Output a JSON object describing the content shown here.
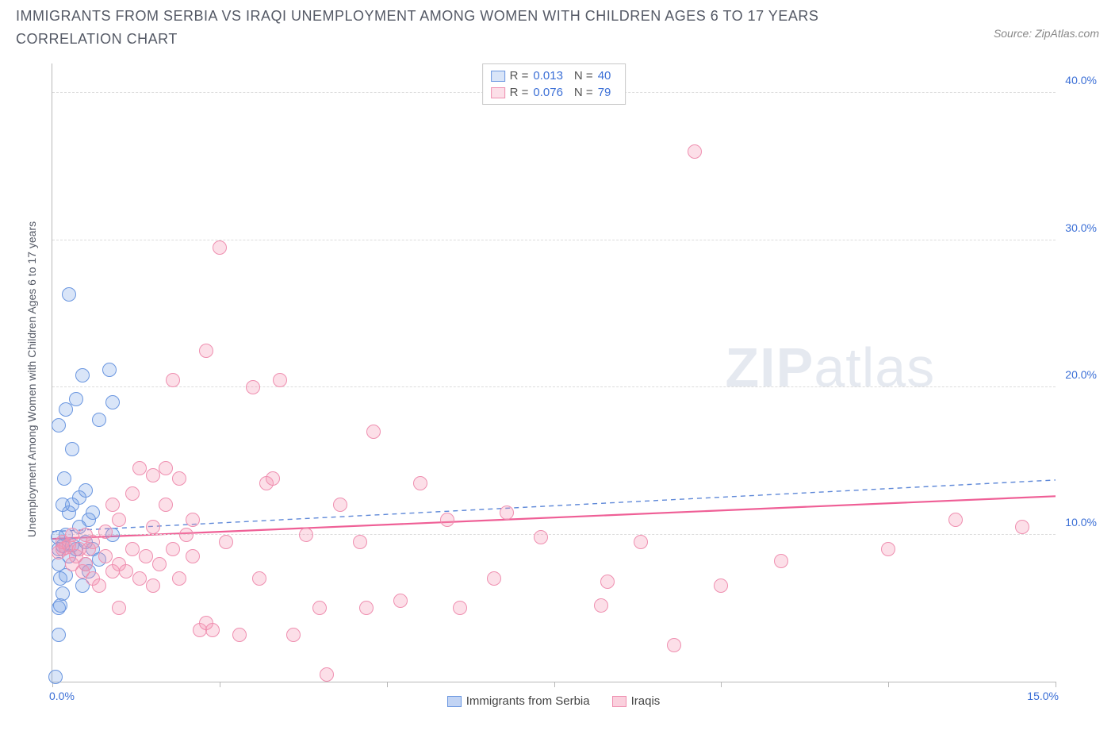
{
  "header": {
    "title": "IMMIGRANTS FROM SERBIA VS IRAQI UNEMPLOYMENT AMONG WOMEN WITH CHILDREN AGES 6 TO 17 YEARS CORRELATION CHART",
    "source": "Source: ZipAtlas.com"
  },
  "watermark": {
    "left": "ZIP",
    "right": "atlas"
  },
  "chart": {
    "type": "scatter",
    "y_label": "Unemployment Among Women with Children Ages 6 to 17 years",
    "xlim": [
      0,
      15
    ],
    "ylim": [
      0,
      42
    ],
    "background_color": "#ffffff",
    "grid_color": "#dcdcdc",
    "axis_color": "#b8b8b8",
    "tick_label_color": "#3b6fd6",
    "y_gridlines": [
      10,
      20,
      30,
      40
    ],
    "y_tick_labels": [
      "10.0%",
      "20.0%",
      "30.0%",
      "40.0%"
    ],
    "x_ticks": [
      0,
      2.5,
      5,
      7.5,
      10,
      12.5,
      15
    ],
    "x_origin_label": "0.0%",
    "x_max_label": "15.0%",
    "marker_radius": 9,
    "series": [
      {
        "name": "Immigrants from Serbia",
        "fill": "rgba(120,160,230,0.28)",
        "stroke": "#6a96e0",
        "trend": {
          "y1": 10.2,
          "y2": 13.7,
          "dash": "6 5",
          "width": 1.4,
          "color": "#5e88d8"
        },
        "R": "0.013",
        "N": "40",
        "points": [
          [
            0.05,
            0.3
          ],
          [
            0.1,
            3.2
          ],
          [
            0.1,
            5.0
          ],
          [
            0.12,
            5.2
          ],
          [
            0.15,
            6.0
          ],
          [
            0.12,
            7.0
          ],
          [
            0.2,
            7.2
          ],
          [
            0.1,
            8.0
          ],
          [
            0.25,
            8.5
          ],
          [
            0.1,
            9.0
          ],
          [
            0.15,
            9.2
          ],
          [
            0.3,
            9.3
          ],
          [
            0.08,
            9.8
          ],
          [
            0.2,
            10.0
          ],
          [
            0.35,
            9.0
          ],
          [
            0.5,
            8.0
          ],
          [
            0.5,
            9.5
          ],
          [
            0.55,
            11.0
          ],
          [
            0.6,
            9.0
          ],
          [
            0.4,
            10.5
          ],
          [
            0.45,
            6.5
          ],
          [
            0.25,
            11.5
          ],
          [
            0.3,
            12.0
          ],
          [
            0.15,
            12.0
          ],
          [
            0.4,
            12.5
          ],
          [
            0.5,
            13.0
          ],
          [
            0.18,
            13.8
          ],
          [
            0.6,
            11.5
          ],
          [
            0.3,
            15.8
          ],
          [
            0.1,
            17.4
          ],
          [
            0.7,
            17.8
          ],
          [
            0.2,
            18.5
          ],
          [
            0.9,
            19.0
          ],
          [
            0.35,
            19.2
          ],
          [
            0.45,
            20.8
          ],
          [
            0.85,
            21.2
          ],
          [
            0.25,
            26.3
          ],
          [
            0.7,
            8.3
          ],
          [
            0.9,
            10.0
          ],
          [
            0.55,
            7.5
          ]
        ]
      },
      {
        "name": "Iraqis",
        "fill": "rgba(245,150,180,0.30)",
        "stroke": "#ef8fb0",
        "trend": {
          "y1": 9.7,
          "y2": 12.6,
          "dash": "none",
          "width": 2.2,
          "color": "#ef5f96"
        },
        "R": "0.076",
        "N": "79",
        "points": [
          [
            0.1,
            8.8
          ],
          [
            0.15,
            9.0
          ],
          [
            0.2,
            9.1
          ],
          [
            0.15,
            9.5
          ],
          [
            0.25,
            9.3
          ],
          [
            0.3,
            8.0
          ],
          [
            0.35,
            8.5
          ],
          [
            0.3,
            10.0
          ],
          [
            0.4,
            9.0
          ],
          [
            0.45,
            7.5
          ],
          [
            0.5,
            8.0
          ],
          [
            0.55,
            9.0
          ],
          [
            0.5,
            10.0
          ],
          [
            0.6,
            9.5
          ],
          [
            0.6,
            7.0
          ],
          [
            0.7,
            6.5
          ],
          [
            0.8,
            8.5
          ],
          [
            0.8,
            10.2
          ],
          [
            0.9,
            7.5
          ],
          [
            0.9,
            12.0
          ],
          [
            1.0,
            5.0
          ],
          [
            1.0,
            8.0
          ],
          [
            1.0,
            11.0
          ],
          [
            1.1,
            7.5
          ],
          [
            1.2,
            9.0
          ],
          [
            1.2,
            12.8
          ],
          [
            1.3,
            7.0
          ],
          [
            1.3,
            14.5
          ],
          [
            1.4,
            8.5
          ],
          [
            1.5,
            6.5
          ],
          [
            1.5,
            10.5
          ],
          [
            1.5,
            14.0
          ],
          [
            1.6,
            8.0
          ],
          [
            1.7,
            12.0
          ],
          [
            1.7,
            14.5
          ],
          [
            1.8,
            9.0
          ],
          [
            1.8,
            20.5
          ],
          [
            1.9,
            7.0
          ],
          [
            1.9,
            13.8
          ],
          [
            2.0,
            10.0
          ],
          [
            2.1,
            8.5
          ],
          [
            2.1,
            11.0
          ],
          [
            2.2,
            3.5
          ],
          [
            2.3,
            4.0
          ],
          [
            2.3,
            22.5
          ],
          [
            2.4,
            3.5
          ],
          [
            2.5,
            29.5
          ],
          [
            2.6,
            9.5
          ],
          [
            2.8,
            3.2
          ],
          [
            3.0,
            20.0
          ],
          [
            3.1,
            7.0
          ],
          [
            3.2,
            13.5
          ],
          [
            3.3,
            13.8
          ],
          [
            3.4,
            20.5
          ],
          [
            3.6,
            3.2
          ],
          [
            3.8,
            10.0
          ],
          [
            4.0,
            5.0
          ],
          [
            4.1,
            0.5
          ],
          [
            4.3,
            12.0
          ],
          [
            4.6,
            9.5
          ],
          [
            4.7,
            5.0
          ],
          [
            4.8,
            17.0
          ],
          [
            5.2,
            5.5
          ],
          [
            5.5,
            13.5
          ],
          [
            5.9,
            11.0
          ],
          [
            6.1,
            5.0
          ],
          [
            6.6,
            7.0
          ],
          [
            6.8,
            11.5
          ],
          [
            7.3,
            9.8
          ],
          [
            8.2,
            5.2
          ],
          [
            8.3,
            6.8
          ],
          [
            8.8,
            9.5
          ],
          [
            9.3,
            2.5
          ],
          [
            9.6,
            36.0
          ],
          [
            10.0,
            6.5
          ],
          [
            10.9,
            8.2
          ],
          [
            12.5,
            9.0
          ],
          [
            13.5,
            11.0
          ],
          [
            14.5,
            10.5
          ]
        ]
      }
    ]
  },
  "bottom_legend": [
    {
      "label": "Immigrants from Serbia",
      "fill": "rgba(120,160,230,0.45)",
      "stroke": "#6a96e0"
    },
    {
      "label": "Iraqis",
      "fill": "rgba(245,150,180,0.45)",
      "stroke": "#ef8fb0"
    }
  ]
}
